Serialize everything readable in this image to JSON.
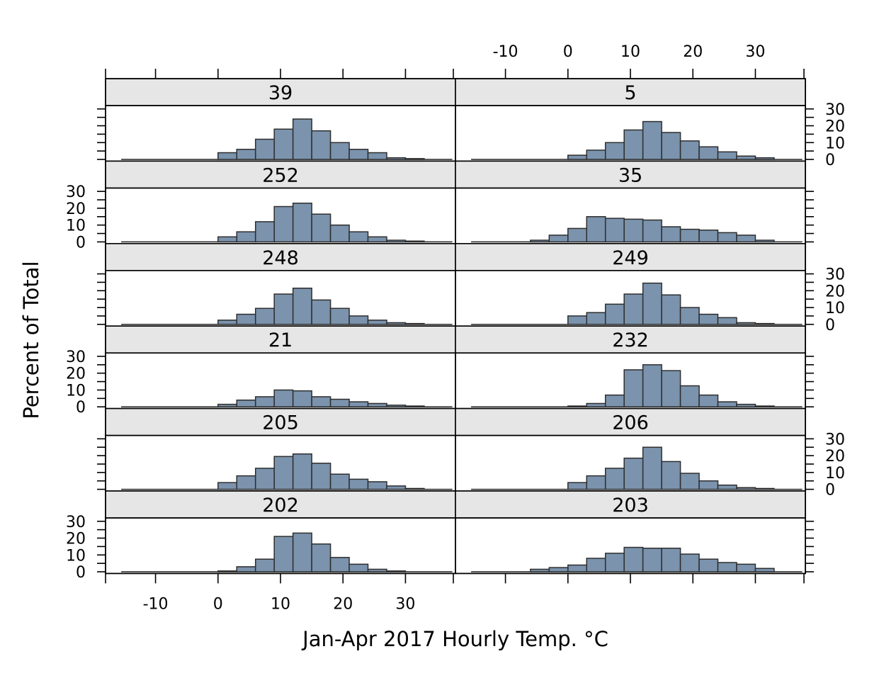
{
  "chart_data": {
    "type": "bar",
    "xlabel": "Jan-Apr 2017 Hourly Temp. °C",
    "ylabel": "Percent of Total",
    "xlim": [
      -18,
      38
    ],
    "ylim": [
      -1,
      32
    ],
    "x_ticks": [
      -10,
      0,
      10,
      20,
      30
    ],
    "y_ticks": [
      0,
      10,
      20,
      30
    ],
    "bin_edges": [
      -6,
      -3,
      0,
      3,
      6,
      9,
      12,
      15,
      18,
      21,
      24,
      27,
      30,
      33
    ],
    "panel_layout": {
      "columns": 2,
      "rows": 6
    },
    "panels": [
      {
        "strip": "39",
        "values": [
          0,
          0,
          4,
          6,
          12,
          18,
          24,
          17,
          10,
          6,
          4,
          1,
          0.5
        ]
      },
      {
        "strip": "5",
        "values": [
          0,
          0,
          2.5,
          5.5,
          10,
          17.5,
          22.5,
          16,
          11,
          7.5,
          4.5,
          2,
          1
        ]
      },
      {
        "strip": "252",
        "values": [
          0,
          0,
          3,
          6,
          12,
          21,
          23,
          16.5,
          10,
          6,
          3,
          1,
          0.5
        ]
      },
      {
        "strip": "35",
        "values": [
          1,
          4,
          8,
          15,
          14,
          13.5,
          13,
          9,
          7.5,
          7,
          5.5,
          4,
          1
        ]
      },
      {
        "strip": "248",
        "values": [
          0,
          0,
          2.5,
          6,
          9.5,
          18,
          21.5,
          14.5,
          9.5,
          5,
          2.5,
          1,
          0.5
        ]
      },
      {
        "strip": "249",
        "values": [
          0,
          0,
          5,
          7,
          12,
          18,
          24.5,
          17.5,
          10,
          6,
          4,
          1,
          0.5
        ]
      },
      {
        "strip": "21",
        "values": [
          0,
          0,
          1.5,
          4,
          6,
          10,
          9.5,
          6,
          4.5,
          3,
          2,
          1,
          0.5
        ]
      },
      {
        "strip": "232",
        "values": [
          0,
          0,
          0.5,
          2,
          7,
          22,
          25,
          21.5,
          12.5,
          7,
          3,
          1.5,
          0.5
        ]
      },
      {
        "strip": "205",
        "values": [
          0,
          0,
          4,
          8,
          12.5,
          19.5,
          21,
          15.5,
          9,
          6,
          4.5,
          2,
          0.5
        ]
      },
      {
        "strip": "206",
        "values": [
          0,
          0,
          4,
          8,
          12.5,
          18.5,
          25,
          16.5,
          9.5,
          5,
          2.5,
          1,
          0.5
        ]
      },
      {
        "strip": "202",
        "values": [
          0,
          0,
          0.5,
          3,
          7.5,
          21,
          23,
          16.5,
          8.5,
          4.5,
          1.5,
          0.5,
          0
        ]
      },
      {
        "strip": "203",
        "values": [
          1.5,
          2.5,
          4,
          8,
          11,
          14.5,
          14,
          14,
          10.5,
          7.5,
          5.5,
          4.5,
          2
        ]
      }
    ],
    "bar_color": "#7b93ad",
    "strip_color": "#e6e6e6",
    "grid": false
  }
}
